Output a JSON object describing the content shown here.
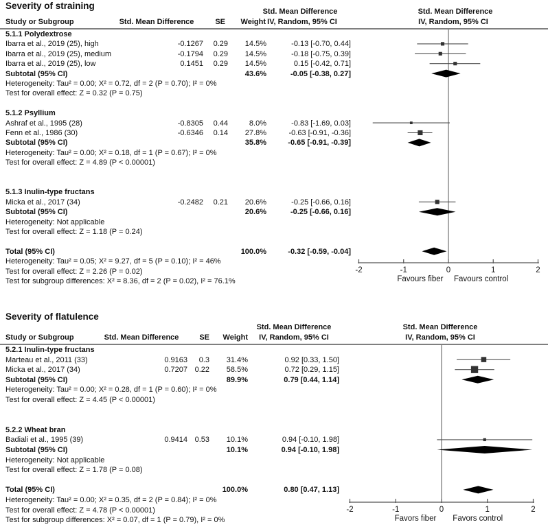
{
  "chart_data": [
    {
      "type": "scatter",
      "variant": "forest-plot",
      "title": "Severity of straining",
      "columns": {
        "study": "Study or Subgroup",
        "smd": "Std. Mean Difference",
        "se": "SE",
        "weight": "Weight",
        "effect": "Std. Mean Difference",
        "model": "IV, Random, 95% CI"
      },
      "axis": {
        "min": -2,
        "max": 2,
        "ticks": [
          -2,
          -1,
          0,
          1,
          2
        ],
        "left_label": "Favours fiber",
        "right_label": "Favours control"
      },
      "rows": [
        {
          "kind": "section",
          "label": "5.1.1 Polydextrose"
        },
        {
          "kind": "study",
          "label": "Ibarra et al., 2019 (25), high",
          "smd": "-0.1267",
          "se": "0.29",
          "weight": "14.5%",
          "ci_text": "-0.13 [-0.70, 0.44]",
          "est": -0.13,
          "lo": -0.7,
          "hi": 0.44,
          "weight_pct": 14.5
        },
        {
          "kind": "study",
          "label": "Ibarra et al., 2019 (25), medium",
          "smd": "-0.1794",
          "se": "0.29",
          "weight": "14.5%",
          "ci_text": "-0.18 [-0.75, 0.39]",
          "est": -0.18,
          "lo": -0.75,
          "hi": 0.39,
          "weight_pct": 14.5
        },
        {
          "kind": "study",
          "label": "Ibarra et al., 2019 (25), low",
          "smd": "0.1451",
          "se": "0.29",
          "weight": "14.5%",
          "ci_text": "0.15 [-0.42, 0.71]",
          "est": 0.15,
          "lo": -0.42,
          "hi": 0.71,
          "weight_pct": 14.5
        },
        {
          "kind": "subtotal",
          "label": "Subtotal (95% CI)",
          "weight": "43.6%",
          "ci_text": "-0.05 [-0.38, 0.27]",
          "est": -0.05,
          "lo": -0.38,
          "hi": 0.27
        },
        {
          "kind": "note",
          "label": "Heterogeneity: Tau² = 0.00; X² = 0.72, df = 2 (P = 0.70); I² = 0%"
        },
        {
          "kind": "note",
          "label": "Test for overall effect: Z = 0.32 (P = 0.75)"
        },
        {
          "kind": "gap"
        },
        {
          "kind": "section",
          "label": "5.1.2 Psyllium"
        },
        {
          "kind": "study",
          "label": "Ashraf et al., 1995 (28)",
          "smd": "-0.8305",
          "se": "0.44",
          "weight": "8.0%",
          "ci_text": "-0.83 [-1.69, 0.03]",
          "est": -0.83,
          "lo": -1.69,
          "hi": 0.03,
          "weight_pct": 8.0
        },
        {
          "kind": "study",
          "label": "Fenn et al., 1986 (30)",
          "smd": "-0.6346",
          "se": "0.14",
          "weight": "27.8%",
          "ci_text": "-0.63 [-0.91, -0.36]",
          "est": -0.63,
          "lo": -0.91,
          "hi": -0.36,
          "weight_pct": 27.8
        },
        {
          "kind": "subtotal",
          "label": "Subtotal (95% CI)",
          "weight": "35.8%",
          "ci_text": "-0.65 [-0.91, -0.39]",
          "est": -0.65,
          "lo": -0.91,
          "hi": -0.39
        },
        {
          "kind": "note",
          "label": "Heterogeneity: Tau² = 0.00; X² = 0.18, df = 1 (P = 0.67); I² = 0%"
        },
        {
          "kind": "note",
          "label": "Test for overall effect: Z = 4.89 (P < 0.00001)"
        },
        {
          "kind": "gap"
        },
        {
          "kind": "gap"
        },
        {
          "kind": "section",
          "label": "5.1.3 Inulin-type fructans"
        },
        {
          "kind": "study",
          "label": "Micka et al., 2017 (34)",
          "smd": "-0.2482",
          "se": "0.21",
          "weight": "20.6%",
          "ci_text": "-0.25 [-0.66, 0.16]",
          "est": -0.25,
          "lo": -0.66,
          "hi": 0.16,
          "weight_pct": 20.6
        },
        {
          "kind": "subtotal",
          "label": "Subtotal (95% CI)",
          "weight": "20.6%",
          "ci_text": "-0.25 [-0.66, 0.16]",
          "est": -0.25,
          "lo": -0.66,
          "hi": 0.16
        },
        {
          "kind": "note",
          "label": "Heterogeneity: Not applicable"
        },
        {
          "kind": "note",
          "label": "Test for overall effect: Z = 1.18 (P = 0.24)"
        },
        {
          "kind": "gap"
        },
        {
          "kind": "total",
          "label": "Total (95% CI)",
          "weight": "100.0%",
          "ci_text": "-0.32 [-0.59, -0.04]",
          "est": -0.32,
          "lo": -0.59,
          "hi": -0.04
        },
        {
          "kind": "note",
          "label": "Heterogeneity: Tau² = 0.05; X² = 9.27, df = 5 (P = 0.10); I² = 46%"
        },
        {
          "kind": "note",
          "label": "Test for overall effect: Z = 2.26 (P = 0.02)"
        },
        {
          "kind": "note",
          "label": "Test for subgroup differences: X² = 8.36, df = 2 (P = 0.02), I² = 76.1%"
        }
      ]
    },
    {
      "type": "scatter",
      "variant": "forest-plot",
      "title": "Severity of flatulence",
      "columns": {
        "study": "Study or Subgroup",
        "smd": "Std. Mean Difference",
        "se": "SE",
        "weight": "Weight",
        "effect": "Std. Mean Difference",
        "model": "IV, Random, 95% CI"
      },
      "axis": {
        "min": -2,
        "max": 2,
        "ticks": [
          -2,
          -1,
          0,
          1,
          2
        ],
        "left_label": "Favors fiber",
        "right_label": "Favors control"
      },
      "rows": [
        {
          "kind": "section",
          "label": "5.2.1 Inulin-type fructans"
        },
        {
          "kind": "study",
          "label": "Marteau et al., 2011 (33)",
          "smd": "0.9163",
          "se": "0.3",
          "weight": "31.4%",
          "ci_text": "0.92 [0.33, 1.50]",
          "est": 0.92,
          "lo": 0.33,
          "hi": 1.5,
          "weight_pct": 31.4
        },
        {
          "kind": "study",
          "label": "Micka et al., 2017 (34)",
          "smd": "0.7207",
          "se": "0.22",
          "weight": "58.5%",
          "ci_text": "0.72 [0.29, 1.15]",
          "est": 0.72,
          "lo": 0.29,
          "hi": 1.15,
          "weight_pct": 58.5
        },
        {
          "kind": "subtotal",
          "label": "Subtotal (95% CI)",
          "weight": "89.9%",
          "ci_text": "0.79 [0.44, 1.14]",
          "est": 0.79,
          "lo": 0.44,
          "hi": 1.14
        },
        {
          "kind": "note",
          "label": "Heterogeneity: Tau² = 0.00; X² = 0.28, df = 1 (P = 0.60); I² = 0%"
        },
        {
          "kind": "note",
          "label": "Test for overall effect: Z = 4.45 (P < 0.00001)"
        },
        {
          "kind": "gap"
        },
        {
          "kind": "gap"
        },
        {
          "kind": "section",
          "label": "5.2.2 Wheat bran"
        },
        {
          "kind": "study",
          "label": "Badiali et al., 1995 (39)",
          "smd": "0.9414",
          "se": "0.53",
          "weight": "10.1%",
          "ci_text": "0.94 [-0.10, 1.98]",
          "est": 0.94,
          "lo": -0.1,
          "hi": 1.98,
          "weight_pct": 10.1
        },
        {
          "kind": "subtotal",
          "label": "Subtotal (95% CI)",
          "weight": "10.1%",
          "ci_text": "0.94 [-0.10, 1.98]",
          "est": 0.94,
          "lo": -0.1,
          "hi": 1.98
        },
        {
          "kind": "note",
          "label": "Heterogeneity: Not applicable"
        },
        {
          "kind": "note",
          "label": "Test for overall effect: Z = 1.78 (P = 0.08)"
        },
        {
          "kind": "gap"
        },
        {
          "kind": "total",
          "label": "Total (95% CI)",
          "weight": "100.0%",
          "ci_text": "0.80 [0.47, 1.13]",
          "est": 0.8,
          "lo": 0.47,
          "hi": 1.13
        },
        {
          "kind": "note",
          "label": "Heterogeneity: Tau² = 0.00; X² = 0.35, df = 2 (P = 0.84); I² = 0%"
        },
        {
          "kind": "note",
          "label": "Test for overall effect: Z = 4.78 (P < 0.00001)"
        },
        {
          "kind": "note",
          "label": "Test for subgroup differences: X² = 0.07, df = 1 (P = 0.79), I² = 0%"
        }
      ]
    }
  ],
  "colors": {
    "text": "#111111",
    "rule": "#7f7f7f",
    "axis": "#555555",
    "ci_line": "#4d4d4d",
    "marker": "#333333",
    "diamond": "#000000"
  }
}
